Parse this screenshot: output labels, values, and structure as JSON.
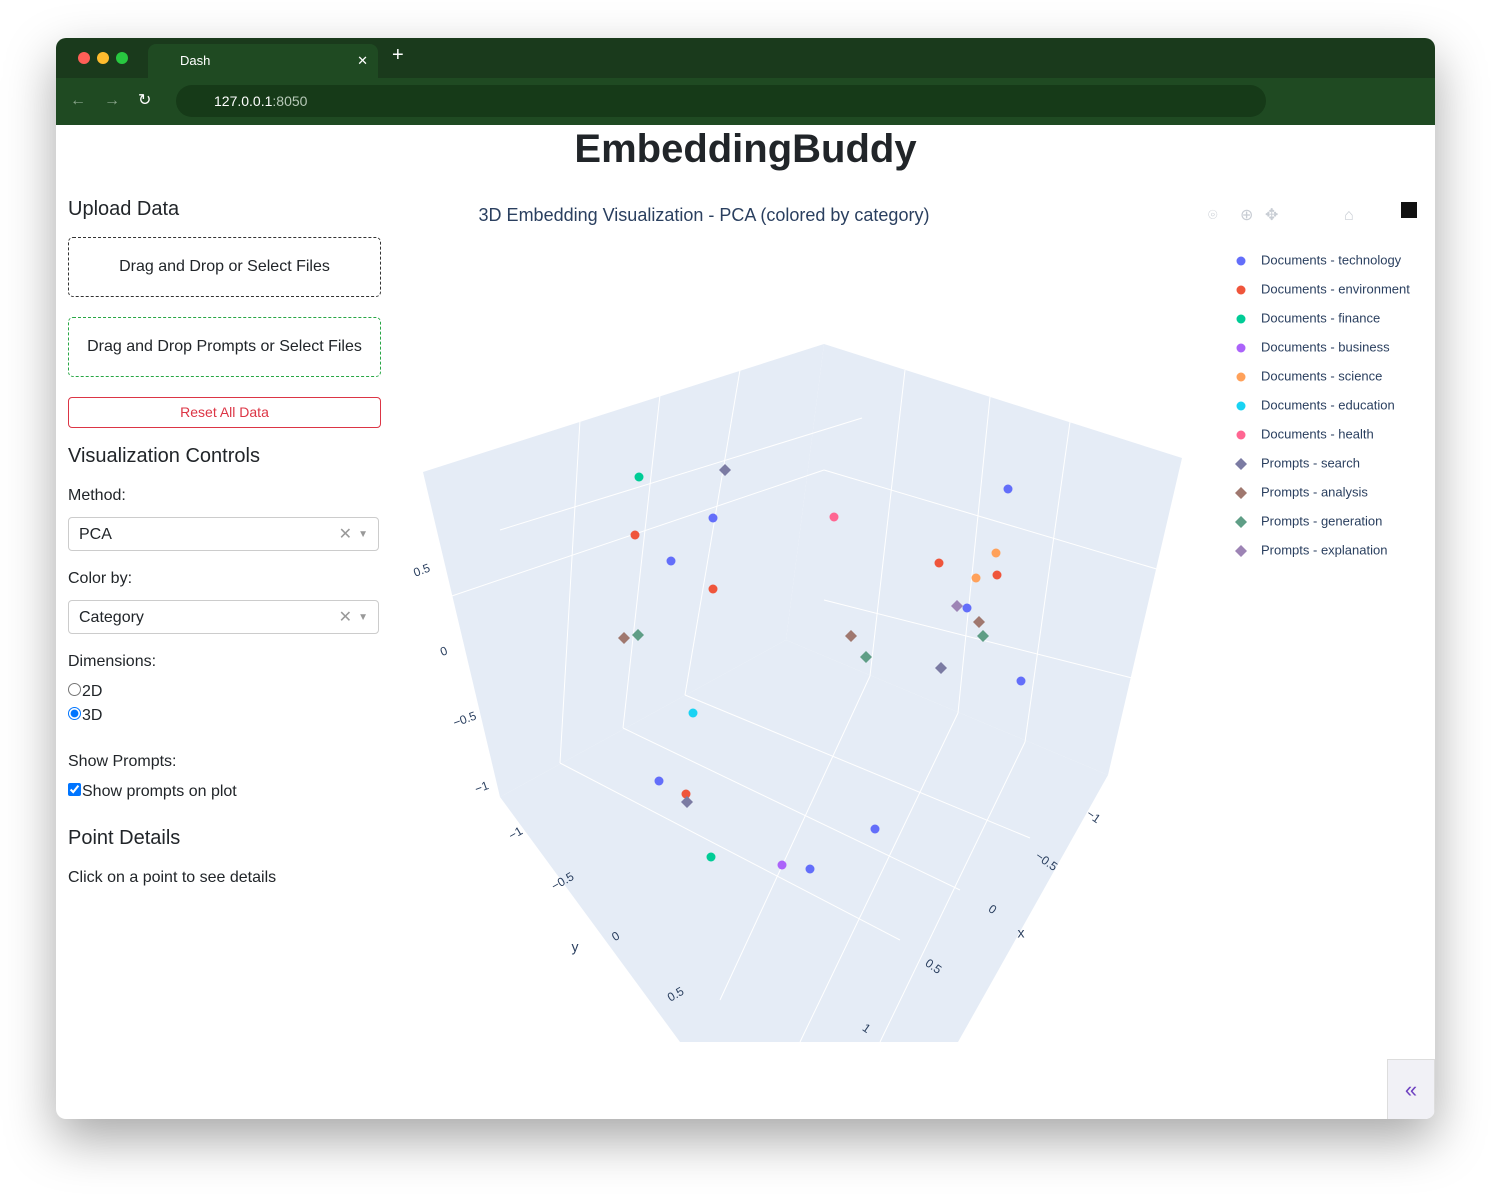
{
  "browser": {
    "tab_title": "Dash",
    "url_host": "127.0.0.1",
    "url_port": ":8050"
  },
  "app": {
    "title": "EmbeddingBuddy"
  },
  "sidebar": {
    "upload_heading": "Upload Data",
    "upload_files": "Drag and Drop or Select Files",
    "upload_prompts": "Drag and Drop Prompts or Select Files",
    "reset": "Reset All Data",
    "controls_heading": "Visualization Controls",
    "method_label": "Method:",
    "method_value": "PCA",
    "color_label": "Color by:",
    "color_value": "Category",
    "dimensions_label": "Dimensions:",
    "dim_options": [
      "2D",
      "3D"
    ],
    "show_prompts_label": "Show Prompts:",
    "show_prompts_option": "Show prompts on plot",
    "details_heading": "Point Details",
    "details_text": "Click on a point to see details"
  },
  "plot": {
    "title": "3D Embedding Visualization - PCA (colored by category)",
    "legend": [
      {
        "name": "Documents - technology",
        "color": "#636efa",
        "symbol": "circle"
      },
      {
        "name": "Documents - environment",
        "color": "#ef553b",
        "symbol": "circle"
      },
      {
        "name": "Documents - finance",
        "color": "#00cc96",
        "symbol": "circle"
      },
      {
        "name": "Documents - business",
        "color": "#ab63fa",
        "symbol": "circle"
      },
      {
        "name": "Documents - science",
        "color": "#ffa15a",
        "symbol": "circle"
      },
      {
        "name": "Documents - education",
        "color": "#19d3f3",
        "symbol": "circle"
      },
      {
        "name": "Documents - health",
        "color": "#ff6692",
        "symbol": "circle"
      },
      {
        "name": "Prompts - search",
        "color": "#7b7ba3",
        "symbol": "diamond"
      },
      {
        "name": "Prompts - analysis",
        "color": "#a0786f",
        "symbol": "diamond"
      },
      {
        "name": "Prompts - generation",
        "color": "#5f9e86",
        "symbol": "diamond"
      },
      {
        "name": "Prompts - explanation",
        "color": "#9d84b5",
        "symbol": "diamond"
      }
    ],
    "x_axis": {
      "title": "x",
      "ticks": [
        "−1",
        "−0.5",
        "0",
        "0.5",
        "1"
      ]
    },
    "y_axis": {
      "title": "y",
      "ticks": [
        "−1",
        "−0.5",
        "0",
        "0.5"
      ]
    },
    "z_axis": {
      "ticks": [
        "0.5",
        "0",
        "−0.5",
        "−1"
      ]
    }
  }
}
